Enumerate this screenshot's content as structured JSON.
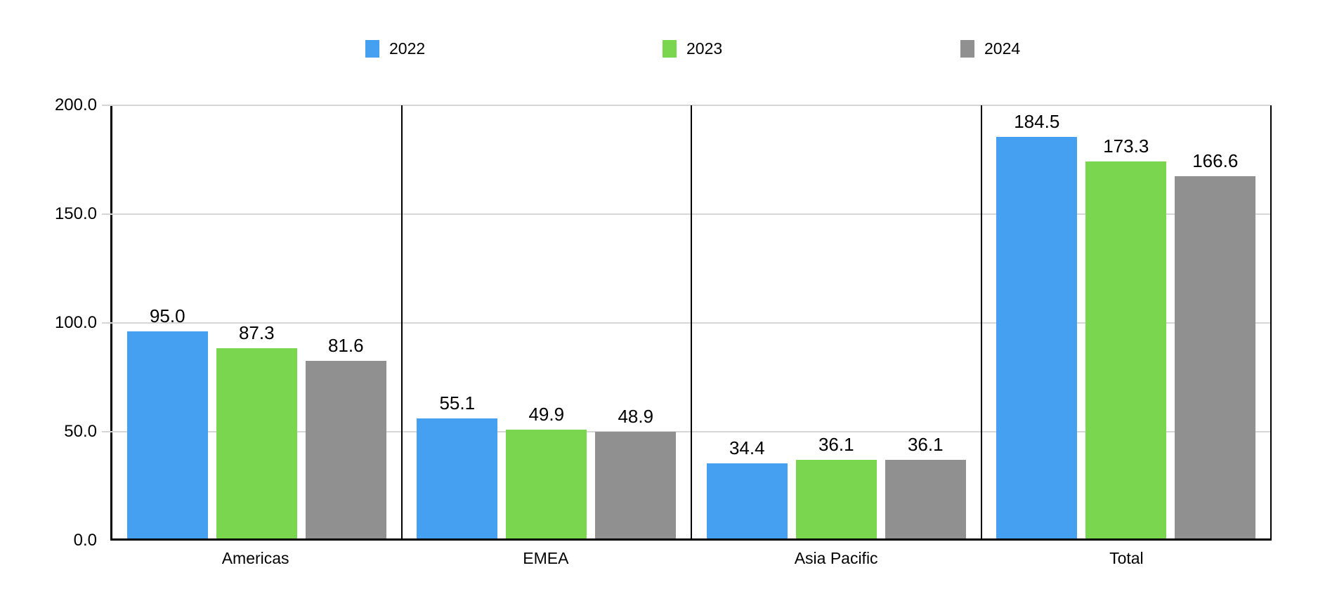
{
  "chart_data": {
    "type": "bar",
    "title": "",
    "categories": [
      "Americas",
      "EMEA",
      "Asia Pacific",
      "Total"
    ],
    "series": [
      {
        "name": "2022",
        "color": "#45A0F2",
        "values": [
          95.0,
          55.1,
          34.4,
          184.5
        ]
      },
      {
        "name": "2023",
        "color": "#7BD64F",
        "values": [
          87.3,
          49.9,
          36.1,
          173.3
        ]
      },
      {
        "name": "2024",
        "color": "#909090",
        "values": [
          81.6,
          48.9,
          36.1,
          166.6
        ]
      }
    ],
    "value_label_decimals": 1,
    "y_ticks": [
      "200.0",
      "150.0",
      "100.0",
      "50.0",
      "0.0"
    ],
    "ylim": [
      0,
      200
    ],
    "grid": true,
    "grid_color": "#d6d6d6",
    "axis_color": "#000000",
    "legend_position": "top",
    "value_labels": true
  }
}
